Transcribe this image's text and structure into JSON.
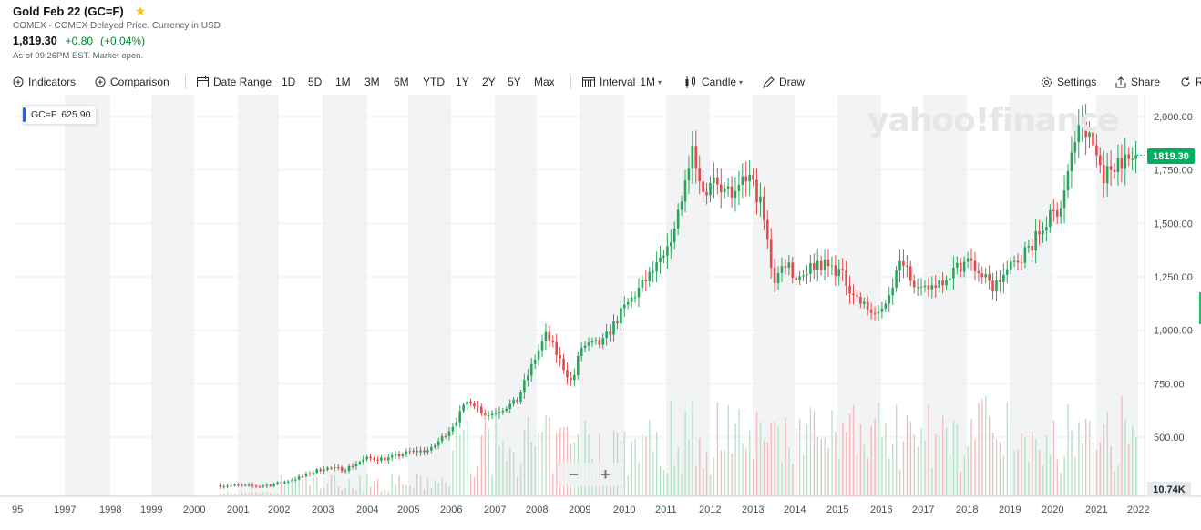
{
  "header": {
    "title": "Gold Feb 22 (GC=F)",
    "exchange": "COMEX - COMEX Delayed Price. Currency in USD",
    "price": "1,819.30",
    "change": "+0.80",
    "change_pct": "(+0.04%)",
    "as_of": "As of 09:26PM EST. Market open."
  },
  "toolbar": {
    "indicators": "Indicators",
    "comparison": "Comparison",
    "date_range": "Date Range",
    "ranges": [
      "1D",
      "5D",
      "1M",
      "3M",
      "6M",
      "YTD",
      "1Y",
      "2Y",
      "5Y",
      "Max"
    ],
    "interval_label": "Interval",
    "interval_value": "1M",
    "chart_type": "Candle",
    "draw": "Draw",
    "settings": "Settings",
    "share": "Share",
    "cut_label": "R"
  },
  "legend": {
    "symbol": "GC=F",
    "value": "625.90"
  },
  "watermark": "yahoo!finance",
  "price_tag": "1819.30",
  "volume_tag": "10.74K",
  "colors": {
    "up": "#26a65b",
    "down": "#e5484d",
    "up_vol": "#b8e2c7",
    "down_vol": "#f4bcbe",
    "band": "#f2f3f4",
    "price_tag": "#00b060"
  },
  "chart_data": {
    "type": "candlestick",
    "interval": "1M",
    "y_ticks": [
      "2,000.00",
      "1,750.00",
      "1,500.00",
      "1,250.00",
      "1,000.00",
      "750.00",
      "500.00"
    ],
    "y_tick_values": [
      2000,
      1750,
      1500,
      1250,
      1000,
      750,
      500
    ],
    "x_ticks": [
      "95",
      "1997",
      "1998",
      "1999",
      "2000",
      "2001",
      "2002",
      "2003",
      "2004",
      "2005",
      "2006",
      "2007",
      "2008",
      "2009",
      "2010",
      "2011",
      "2012",
      "2013",
      "2014",
      "2015",
      "2016",
      "2017",
      "2018",
      "2019",
      "2020",
      "2021",
      "2022"
    ],
    "price_anchors": [
      [
        2000.6,
        275
      ],
      [
        2001.5,
        270
      ],
      [
        2002.0,
        285
      ],
      [
        2002.5,
        315
      ],
      [
        2003.0,
        355
      ],
      [
        2003.5,
        350
      ],
      [
        2004.0,
        400
      ],
      [
        2004.5,
        400
      ],
      [
        2005.0,
        430
      ],
      [
        2005.5,
        440
      ],
      [
        2006.0,
        550
      ],
      [
        2006.4,
        680
      ],
      [
        2006.8,
        600
      ],
      [
        2007.5,
        665
      ],
      [
        2008.0,
        900
      ],
      [
        2008.2,
        980
      ],
      [
        2008.8,
        750
      ],
      [
        2009.0,
        920
      ],
      [
        2009.5,
        940
      ],
      [
        2010.0,
        1100
      ],
      [
        2010.5,
        1230
      ],
      [
        2011.0,
        1350
      ],
      [
        2011.6,
        1820
      ],
      [
        2011.8,
        1650
      ],
      [
        2012.2,
        1700
      ],
      [
        2012.6,
        1620
      ],
      [
        2012.9,
        1730
      ],
      [
        2013.2,
        1590
      ],
      [
        2013.5,
        1230
      ],
      [
        2013.8,
        1330
      ],
      [
        2014.0,
        1240
      ],
      [
        2014.5,
        1320
      ],
      [
        2015.0,
        1280
      ],
      [
        2015.5,
        1130
      ],
      [
        2015.95,
        1060
      ],
      [
        2016.5,
        1340
      ],
      [
        2016.9,
        1170
      ],
      [
        2017.5,
        1250
      ],
      [
        2018.0,
        1330
      ],
      [
        2018.6,
        1200
      ],
      [
        2019.0,
        1290
      ],
      [
        2019.5,
        1400
      ],
      [
        2019.9,
        1520
      ],
      [
        2020.2,
        1590
      ],
      [
        2020.6,
        1970
      ],
      [
        2020.9,
        1880
      ],
      [
        2021.2,
        1720
      ],
      [
        2021.5,
        1800
      ],
      [
        2021.8,
        1790
      ],
      [
        2021.95,
        1819.3
      ]
    ],
    "last_close": 1819.3,
    "volume_tag": "10.74K"
  }
}
